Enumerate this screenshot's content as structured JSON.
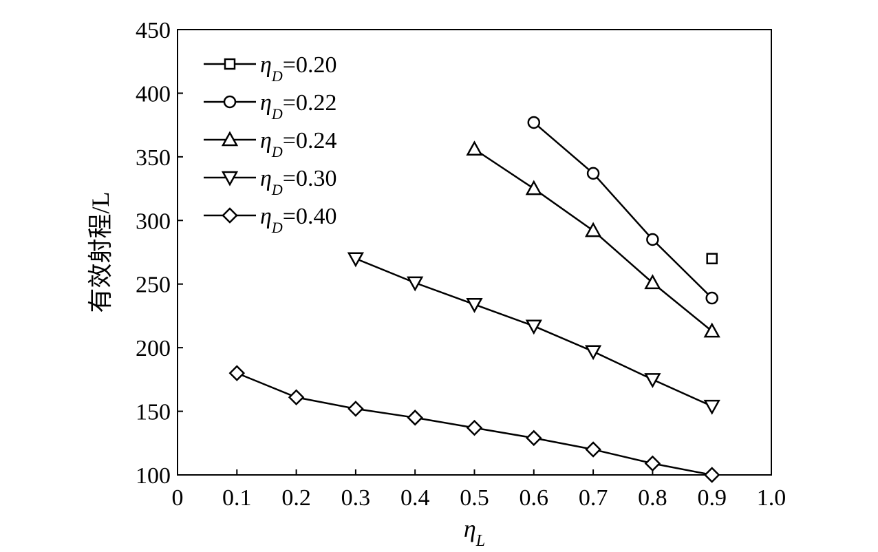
{
  "chart_data": {
    "type": "line",
    "title": "",
    "xlabel": "η",
    "xlabel_sub": "L",
    "ylabel": "有效射程/L",
    "xlim": [
      0,
      1.0
    ],
    "ylim": [
      100,
      450
    ],
    "xticks": [
      0,
      0.1,
      0.2,
      0.3,
      0.4,
      0.5,
      0.6,
      0.7,
      0.8,
      0.9,
      1.0
    ],
    "xtick_labels": [
      "0",
      "0.1",
      "0.2",
      "0.3",
      "0.4",
      "0.5",
      "0.6",
      "0.7",
      "0.8",
      "0.9",
      "1.0"
    ],
    "yticks": [
      100,
      150,
      200,
      250,
      300,
      350,
      400,
      450
    ],
    "ytick_labels": [
      "100",
      "150",
      "200",
      "250",
      "300",
      "350",
      "400",
      "450"
    ],
    "grid": false,
    "legend_position": "top-left",
    "series": [
      {
        "legend_main": "η",
        "legend_sub": "D",
        "legend_value": "=0.20",
        "marker": "square",
        "x": [
          0.9
        ],
        "y": [
          270
        ]
      },
      {
        "legend_main": "η",
        "legend_sub": "D",
        "legend_value": "=0.22",
        "marker": "circle",
        "x": [
          0.6,
          0.7,
          0.8,
          0.9
        ],
        "y": [
          377,
          337,
          285,
          239
        ]
      },
      {
        "legend_main": "η",
        "legend_sub": "D",
        "legend_value": "=0.24",
        "marker": "triangle-up",
        "x": [
          0.5,
          0.6,
          0.7,
          0.8,
          0.9
        ],
        "y": [
          356,
          325,
          292,
          251,
          213
        ]
      },
      {
        "legend_main": "η",
        "legend_sub": "D",
        "legend_value": "=0.30",
        "marker": "triangle-down",
        "x": [
          0.3,
          0.4,
          0.5,
          0.6,
          0.7,
          0.8,
          0.9
        ],
        "y": [
          270,
          251,
          234,
          217,
          197,
          175,
          154
        ]
      },
      {
        "legend_main": "η",
        "legend_sub": "D",
        "legend_value": "=0.40",
        "marker": "diamond",
        "x": [
          0.1,
          0.2,
          0.3,
          0.4,
          0.5,
          0.6,
          0.7,
          0.8,
          0.9
        ],
        "y": [
          180,
          161,
          152,
          145,
          137,
          129,
          120,
          109,
          100
        ]
      }
    ]
  }
}
